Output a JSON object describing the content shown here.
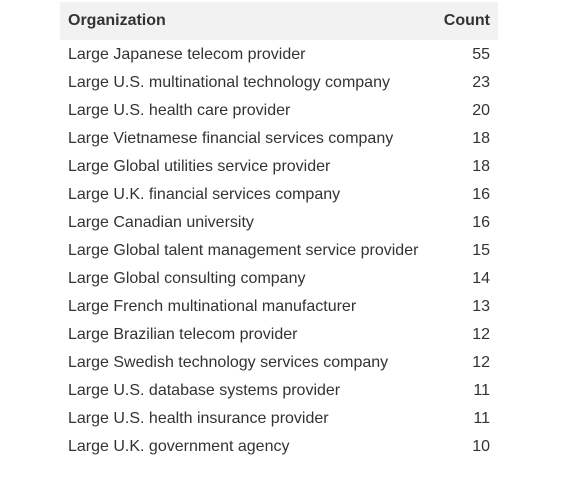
{
  "table": {
    "headers": {
      "organization": "Organization",
      "count": "Count"
    },
    "rows": [
      {
        "organization": "Large Japanese telecom provider",
        "count": "55"
      },
      {
        "organization": "Large U.S. multinational technology company",
        "count": "23"
      },
      {
        "organization": "Large U.S. health care provider",
        "count": "20"
      },
      {
        "organization": "Large Vietnamese financial services company",
        "count": "18"
      },
      {
        "organization": "Large Global utilities service provider",
        "count": "18"
      },
      {
        "organization": "Large U.K. financial services company",
        "count": "16"
      },
      {
        "organization": "Large Canadian university",
        "count": "16"
      },
      {
        "organization": "Large Global talent management service provider",
        "count": "15"
      },
      {
        "organization": "Large Global consulting company",
        "count": "14"
      },
      {
        "organization": "Large French multinational manufacturer",
        "count": "13"
      },
      {
        "organization": "Large Brazilian telecom provider",
        "count": "12"
      },
      {
        "organization": "Large Swedish technology services company",
        "count": "12"
      },
      {
        "organization": "Large U.S. database systems provider",
        "count": "11"
      },
      {
        "organization": "Large U.S. health insurance provider",
        "count": "11"
      },
      {
        "organization": "Large U.K. government agency",
        "count": "10"
      }
    ]
  },
  "colors": {
    "header_background": "#f2f2f2",
    "text": "#333333"
  }
}
